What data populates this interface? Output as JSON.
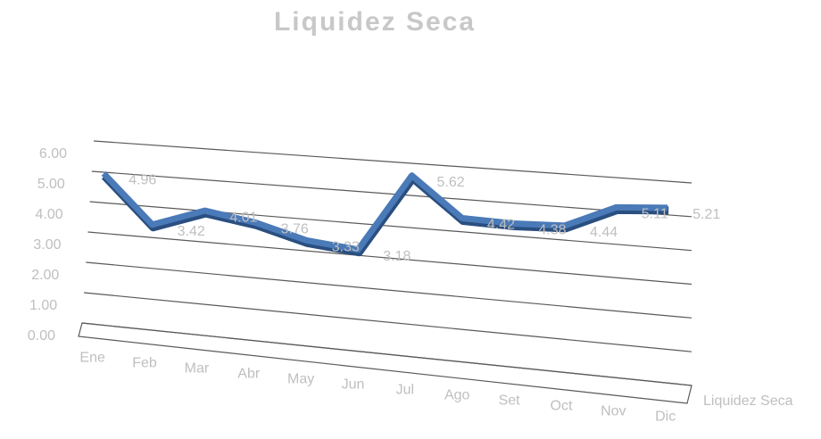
{
  "chart_data": {
    "type": "line",
    "title": "Liquidez Seca",
    "categories": [
      "Ene",
      "Feb",
      "Mar",
      "Abr",
      "May",
      "Jun",
      "Jul",
      "Ago",
      "Set",
      "Oct",
      "Nov",
      "Dic"
    ],
    "series": [
      {
        "name": "Liquidez Seca",
        "color": "#4a7ab8",
        "values": [
          4.96,
          3.42,
          4.01,
          3.76,
          3.33,
          3.18,
          5.62,
          4.42,
          4.38,
          4.44,
          5.11,
          5.21
        ]
      }
    ],
    "ylim": [
      0,
      6
    ],
    "yticks": [
      {
        "value": 0,
        "label": "0.00"
      },
      {
        "value": 1,
        "label": "1.00"
      },
      {
        "value": 2,
        "label": "2.00"
      },
      {
        "value": 3,
        "label": "3.00"
      },
      {
        "value": 4,
        "label": "4.00"
      },
      {
        "value": 5,
        "label": "5.00"
      },
      {
        "value": 6,
        "label": "6.00"
      }
    ],
    "grid": true,
    "legend": "right"
  }
}
